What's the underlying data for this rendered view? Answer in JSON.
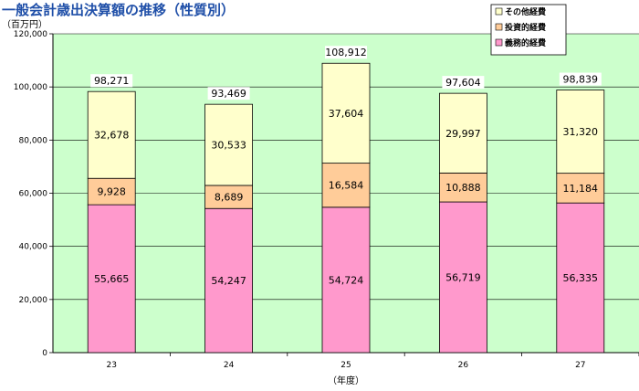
{
  "chart_data": {
    "type": "bar",
    "stacked": true,
    "title": "一般会計歳出決算額の推移（性質別）",
    "ylabel": "（百万円）",
    "xlabel": "（年度）",
    "categories": [
      "23",
      "24",
      "25",
      "26",
      "27"
    ],
    "ylim": [
      0,
      120000
    ],
    "yticks": [
      "0",
      "20,000",
      "40,000",
      "60,000",
      "80,000",
      "100,000",
      "120,000"
    ],
    "grid": true,
    "legend_position": "top-right",
    "series": [
      {
        "name": "義務的経費",
        "color": "#ff99cc",
        "values": [
          55665,
          54247,
          54724,
          56719,
          56335
        ],
        "labels": [
          "55,665",
          "54,247",
          "54,724",
          "56,719",
          "56,335"
        ]
      },
      {
        "name": "投資的経費",
        "color": "#ffcc99",
        "values": [
          9928,
          8689,
          16584,
          10888,
          11184
        ],
        "labels": [
          "9,928",
          "8,689",
          "16,584",
          "10,888",
          "11,184"
        ]
      },
      {
        "name": "その他経費",
        "color": "#ffffcc",
        "values": [
          32678,
          30533,
          37604,
          29997,
          31320
        ],
        "labels": [
          "32,678",
          "30,533",
          "37,604",
          "29,997",
          "31,320"
        ]
      }
    ],
    "totals": [
      "98,271",
      "93,469",
      "108,912",
      "97,604",
      "98,839"
    ],
    "legend_order": [
      "その他経費",
      "投資的経費",
      "義務的経費"
    ],
    "plot_bg": "#ccffcc"
  }
}
